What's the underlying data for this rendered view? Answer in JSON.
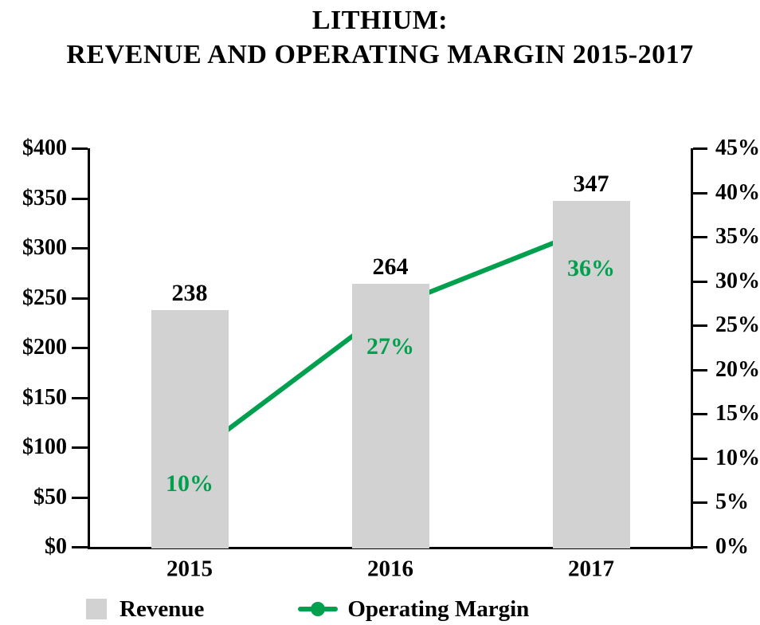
{
  "title": {
    "line1": "LITHIUM:",
    "line2": "REVENUE AND OPERATING MARGIN 2015-2017"
  },
  "colors": {
    "bar": "#d2d2d2",
    "line": "#00a04e",
    "text": "#000000"
  },
  "chart_data": {
    "type": "bar",
    "subtype": "bar-and-line-combo",
    "title": "LITHIUM: REVENUE AND OPERATING MARGIN 2015-2017",
    "categories": [
      "2015",
      "2016",
      "2017"
    ],
    "series": [
      {
        "name": "Revenue",
        "type": "bar",
        "axis": "left",
        "values": [
          238,
          264,
          347
        ],
        "labels": [
          "238",
          "264",
          "347"
        ],
        "color": "#d2d2d2"
      },
      {
        "name": "Operating Margin",
        "type": "line",
        "axis": "right",
        "values": [
          10,
          27,
          36
        ],
        "labels": [
          "10%",
          "27%",
          "36%"
        ],
        "color": "#00a04e"
      }
    ],
    "left_axis": {
      "min": 0,
      "max": 400,
      "step": 50,
      "tick_labels": [
        "$400",
        "$350",
        "$300",
        "$250",
        "$200",
        "$150",
        "$100",
        "$50",
        "$0"
      ]
    },
    "right_axis": {
      "min": 0,
      "max": 45,
      "step": 5,
      "tick_labels": [
        "45%",
        "40%",
        "35%",
        "30%",
        "25%",
        "20%",
        "15%",
        "10%",
        "5%",
        "0%"
      ]
    },
    "legend": {
      "position": "bottom",
      "items": [
        {
          "label": "Revenue",
          "swatch": "square"
        },
        {
          "label": "Operating Margin",
          "swatch": "line-marker"
        }
      ]
    },
    "grid": false
  }
}
